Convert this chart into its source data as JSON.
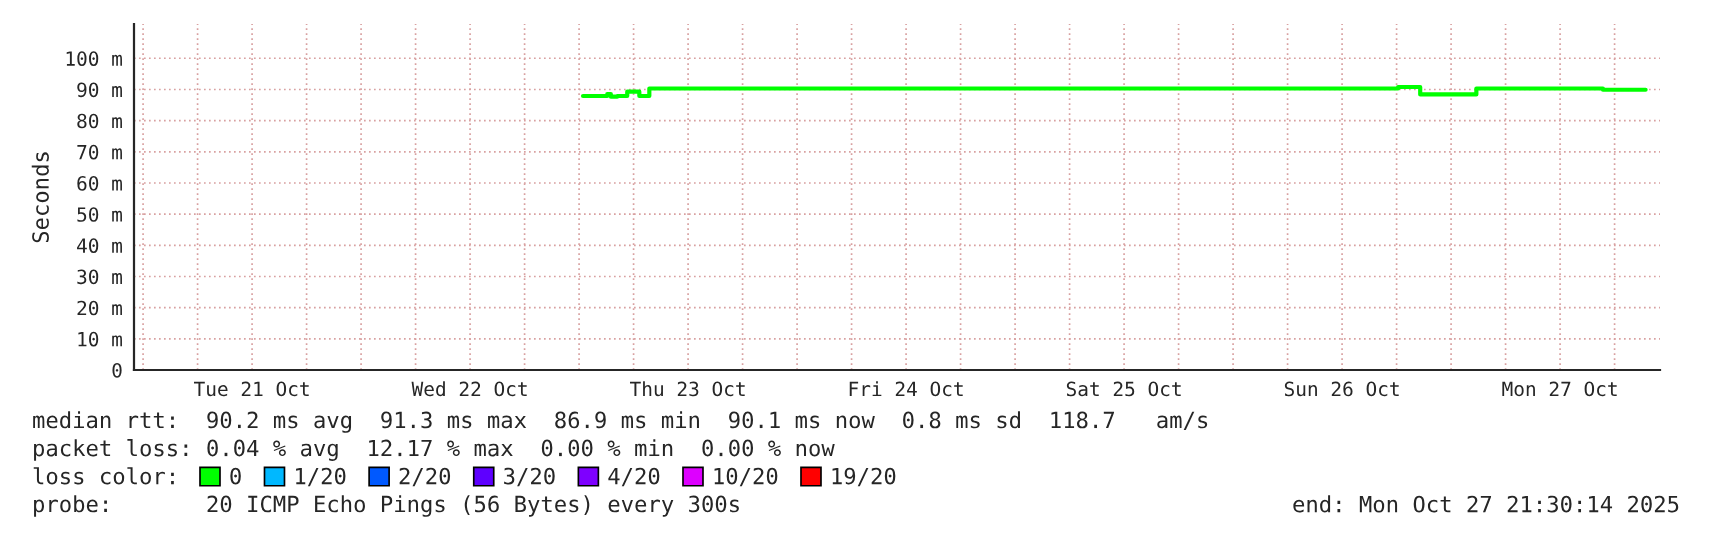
{
  "chart_data": {
    "type": "step",
    "ylabel": "Seconds",
    "legend_title": "loss color:",
    "legend": "bottom",
    "grid": true,
    "xlim": [
      "2025-10-20T23:00",
      "2025-10-27T23:00"
    ],
    "xticks": [
      {
        "value": "2025-10-21T00:00",
        "label": null
      },
      {
        "value": "2025-10-21T06:00",
        "label": null
      },
      {
        "value": "2025-10-21T12:00",
        "label": "Tue 21 Oct"
      },
      {
        "value": "2025-10-21T18:00",
        "label": null
      },
      {
        "value": "2025-10-22T00:00",
        "label": null
      },
      {
        "value": "2025-10-22T06:00",
        "label": null
      },
      {
        "value": "2025-10-22T12:00",
        "label": "Wed 22 Oct"
      },
      {
        "value": "2025-10-22T18:00",
        "label": null
      },
      {
        "value": "2025-10-23T00:00",
        "label": null
      },
      {
        "value": "2025-10-23T06:00",
        "label": null
      },
      {
        "value": "2025-10-23T12:00",
        "label": "Thu 23 Oct"
      },
      {
        "value": "2025-10-23T18:00",
        "label": null
      },
      {
        "value": "2025-10-24T00:00",
        "label": null
      },
      {
        "value": "2025-10-24T06:00",
        "label": null
      },
      {
        "value": "2025-10-24T12:00",
        "label": "Fri 24 Oct"
      },
      {
        "value": "2025-10-24T18:00",
        "label": null
      },
      {
        "value": "2025-10-25T00:00",
        "label": null
      },
      {
        "value": "2025-10-25T06:00",
        "label": null
      },
      {
        "value": "2025-10-25T12:00",
        "label": "Sat 25 Oct"
      },
      {
        "value": "2025-10-25T18:00",
        "label": null
      },
      {
        "value": "2025-10-26T00:00",
        "label": null
      },
      {
        "value": "2025-10-26T06:00",
        "label": null
      },
      {
        "value": "2025-10-26T12:00",
        "label": "Sun 26 Oct"
      },
      {
        "value": "2025-10-26T18:00",
        "label": null
      },
      {
        "value": "2025-10-27T00:00",
        "label": null
      },
      {
        "value": "2025-10-27T06:00",
        "label": null
      },
      {
        "value": "2025-10-27T12:00",
        "label": "Mon 27 Oct"
      },
      {
        "value": "2025-10-27T18:00",
        "label": null
      }
    ],
    "ylim": [
      0,
      111
    ],
    "yticks": [
      0,
      {
        "value": 10,
        "label": "10 m"
      },
      {
        "value": 20,
        "label": "20 m"
      },
      {
        "value": 30,
        "label": "30 m"
      },
      {
        "value": 40,
        "label": "40 m"
      },
      {
        "value": 50,
        "label": "50 m"
      },
      {
        "value": 60,
        "label": "60 m"
      },
      {
        "value": 70,
        "label": "70 m"
      },
      {
        "value": 80,
        "label": "80 m"
      },
      {
        "value": 90,
        "label": "90 m"
      },
      {
        "value": 100,
        "label": "100 m"
      }
    ],
    "series": [
      {
        "name": "0",
        "color": "#00ff00",
        "x": [
          "2025-10-23T00:26",
          "2025-10-23T03:06",
          "2025-10-23T03:30",
          "2025-10-23T04:12",
          "2025-10-23T05:18",
          "2025-10-23T06:38",
          "2025-10-23T07:44",
          "2025-10-26T18:10",
          "2025-10-26T20:36",
          "2025-10-27T02:47",
          "2025-10-27T16:43",
          "2025-10-27T21:25"
        ],
        "values": [
          87.9,
          88.5,
          87.7,
          87.9,
          89.3,
          87.9,
          90.3,
          90.8,
          88.4,
          90.3,
          89.9,
          89.9
        ]
      },
      {
        "name": "1/20",
        "color": "#00b8ff"
      },
      {
        "name": "2/20",
        "color": "#0059ff"
      },
      {
        "name": "3/20",
        "color": "#5e00ff"
      },
      {
        "name": "4/20",
        "color": "#7e00ff"
      },
      {
        "name": "10/20",
        "color": "#dd00ff"
      },
      {
        "name": "19/20",
        "color": "#ff0000"
      }
    ],
    "annotations": [
      "median rtt:  90.2 ms avg  91.3 ms max  86.9 ms min  90.1 ms now  0.8 ms sd  118.7   am/s",
      "packet loss: 0.04 % avg  12.17 % max  0.00 % min  0.00 % now",
      "probe:       20 ICMP Echo Pings (56 Bytes) every 300s",
      "end: Mon Oct 27 21:30:14 2025"
    ]
  }
}
